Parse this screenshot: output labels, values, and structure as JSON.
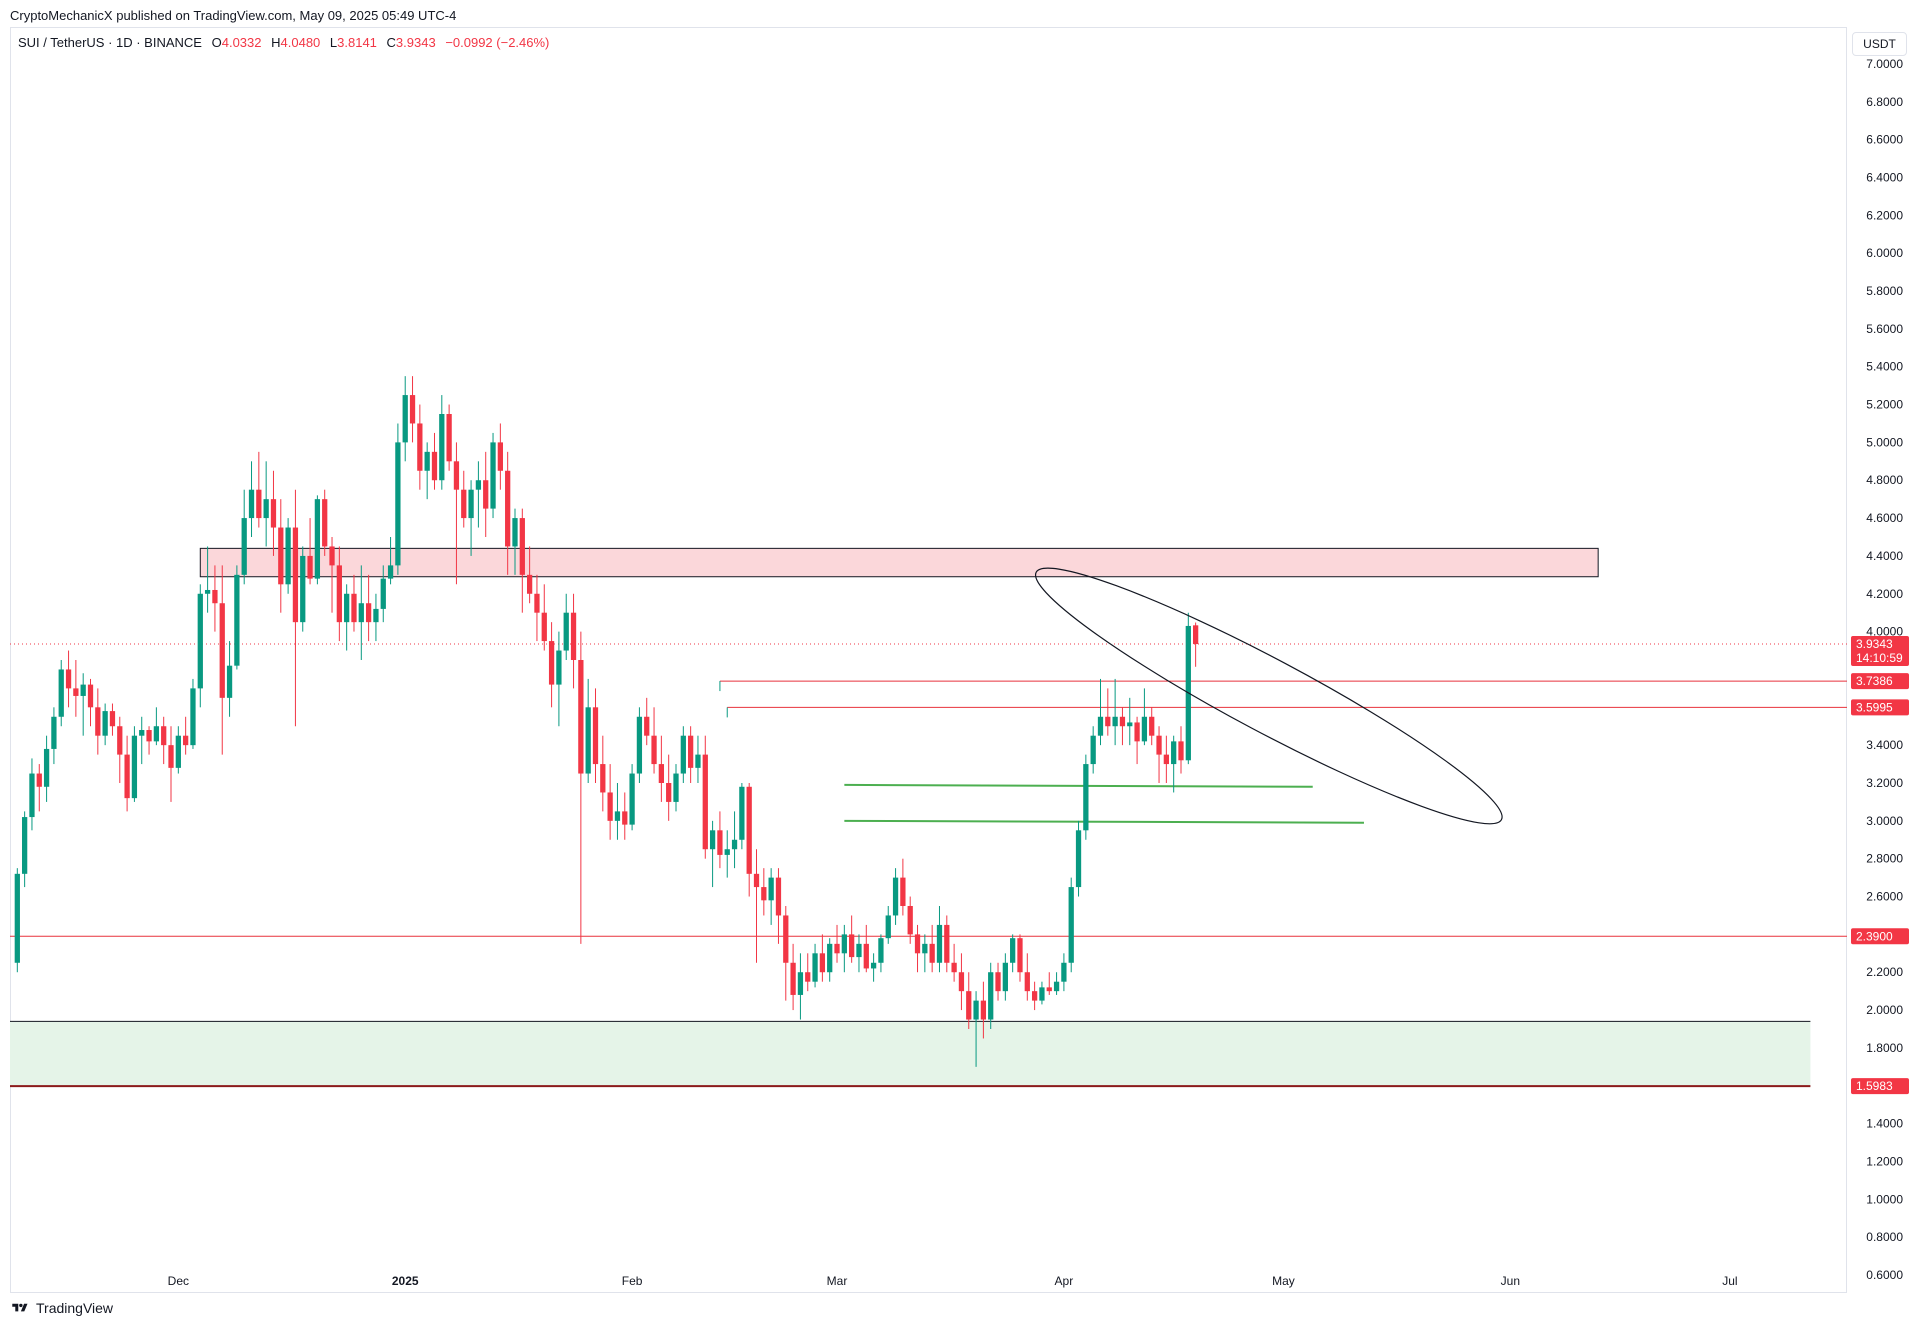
{
  "header": {
    "publisher_line": "CryptoMechanicX published on TradingView.com, May 09, 2025 05:49 UTC-4"
  },
  "legend": {
    "symbol": "SUI / TetherUS · 1D · BINANCE",
    "o_label": "O",
    "o_value": "4.0332",
    "h_label": "H",
    "h_value": "4.0480",
    "l_label": "L",
    "l_value": "3.8141",
    "c_label": "C",
    "c_value": "3.9343",
    "change": "−0.0992 (−2.46%)"
  },
  "currency_button": "USDT",
  "footer": {
    "brand": "TradingView"
  },
  "colors": {
    "up": "#089981",
    "down": "#f23645",
    "resistance_zone": "#fbd7da",
    "support_zone": "#e5f4e8",
    "level_line": "#e8323c",
    "green_line": "#4caf50"
  },
  "chart_data": {
    "type": "candlestick",
    "symbol": "SUI/USDT",
    "timeframe": "1D",
    "ylim": [
      0.6,
      7.1
    ],
    "y_ticks": [
      "7.0000",
      "6.8000",
      "6.6000",
      "6.4000",
      "6.2000",
      "6.0000",
      "5.8000",
      "5.6000",
      "5.4000",
      "5.2000",
      "5.0000",
      "4.8000",
      "4.6000",
      "4.4000",
      "4.2000",
      "4.0000",
      "3.4000",
      "3.2000",
      "3.0000",
      "2.8000",
      "2.6000",
      "2.2000",
      "2.0000",
      "1.8000",
      "1.4000",
      "1.2000",
      "1.0000",
      "0.8000",
      "0.6000"
    ],
    "x_ticks": [
      {
        "label": "Dec",
        "date": "2024-12-01"
      },
      {
        "label": "2025",
        "date": "2025-01-01"
      },
      {
        "label": "Feb",
        "date": "2025-02-01"
      },
      {
        "label": "Mar",
        "date": "2025-03-01"
      },
      {
        "label": "Apr",
        "date": "2025-04-01"
      },
      {
        "label": "May",
        "date": "2025-05-01"
      },
      {
        "label": "Jun",
        "date": "2025-06-01"
      },
      {
        "label": "Jul",
        "date": "2025-07-01"
      }
    ],
    "x_range": [
      "2024-11-08",
      "2025-07-17"
    ],
    "price_labels": [
      {
        "value": "3.9343",
        "price": 3.9343,
        "sub": "14:10:59"
      },
      {
        "value": "3.7386",
        "price": 3.7386
      },
      {
        "value": "3.5995",
        "price": 3.5995
      },
      {
        "value": "2.3900",
        "price": 2.39
      },
      {
        "value": "1.5983",
        "price": 1.5983
      }
    ],
    "zones": [
      {
        "name": "resistance",
        "from": 4.29,
        "to": 4.44,
        "start": "2024-12-04",
        "end": "2025-06-13"
      },
      {
        "name": "support",
        "from": 1.5983,
        "to": 1.94,
        "start": "2024-11-08",
        "end": "2025-07-12"
      }
    ],
    "levels": [
      {
        "price": 3.7386,
        "start": "2025-02-13"
      },
      {
        "price": 3.5995,
        "start": "2025-02-14"
      },
      {
        "price": 2.39,
        "start": "2024-11-08"
      }
    ],
    "green_lines": [
      {
        "start": "2025-03-02",
        "end": "2025-05-05",
        "p1": 3.19,
        "p2": 3.18
      },
      {
        "start": "2025-03-02",
        "end": "2025-05-12",
        "p1": 3.0,
        "p2": 2.99
      }
    ],
    "ellipse": {
      "center_date": "2025-04-29",
      "center_price": 3.66,
      "rx_days": 6,
      "ry_price": 0.35,
      "angle": 28
    },
    "start_date": "2024-11-09",
    "ohlc": [
      [
        2.25,
        2.75,
        2.2,
        2.72
      ],
      [
        2.72,
        3.05,
        2.65,
        3.02
      ],
      [
        3.02,
        3.33,
        2.95,
        3.25
      ],
      [
        3.25,
        3.3,
        3.05,
        3.18
      ],
      [
        3.18,
        3.45,
        3.1,
        3.38
      ],
      [
        3.38,
        3.6,
        3.3,
        3.55
      ],
      [
        3.55,
        3.85,
        3.5,
        3.8
      ],
      [
        3.8,
        3.9,
        3.6,
        3.7
      ],
      [
        3.7,
        3.85,
        3.55,
        3.66
      ],
      [
        3.66,
        3.78,
        3.45,
        3.72
      ],
      [
        3.72,
        3.75,
        3.5,
        3.6
      ],
      [
        3.6,
        3.7,
        3.35,
        3.45
      ],
      [
        3.45,
        3.62,
        3.4,
        3.58
      ],
      [
        3.58,
        3.62,
        3.45,
        3.5
      ],
      [
        3.5,
        3.55,
        3.2,
        3.35
      ],
      [
        3.35,
        3.45,
        3.05,
        3.12
      ],
      [
        3.12,
        3.5,
        3.1,
        3.45
      ],
      [
        3.45,
        3.55,
        3.3,
        3.48
      ],
      [
        3.48,
        3.5,
        3.35,
        3.42
      ],
      [
        3.42,
        3.6,
        3.4,
        3.5
      ],
      [
        3.5,
        3.55,
        3.3,
        3.4
      ],
      [
        3.4,
        3.5,
        3.1,
        3.28
      ],
      [
        3.28,
        3.5,
        3.25,
        3.45
      ],
      [
        3.45,
        3.55,
        3.35,
        3.4
      ],
      [
        3.4,
        3.75,
        3.38,
        3.7
      ],
      [
        3.7,
        4.25,
        3.6,
        4.2
      ],
      [
        4.2,
        4.45,
        4.1,
        4.22
      ],
      [
        4.22,
        4.35,
        4.0,
        4.15
      ],
      [
        4.15,
        4.35,
        3.35,
        3.65
      ],
      [
        3.65,
        3.95,
        3.55,
        3.82
      ],
      [
        3.82,
        4.35,
        3.8,
        4.3
      ],
      [
        4.3,
        4.75,
        4.25,
        4.6
      ],
      [
        4.6,
        4.9,
        4.5,
        4.75
      ],
      [
        4.75,
        4.95,
        4.55,
        4.6
      ],
      [
        4.6,
        4.9,
        4.45,
        4.7
      ],
      [
        4.7,
        4.85,
        4.4,
        4.55
      ],
      [
        4.55,
        4.7,
        4.1,
        4.25
      ],
      [
        4.25,
        4.6,
        4.2,
        4.55
      ],
      [
        4.55,
        4.75,
        3.5,
        4.05
      ],
      [
        4.05,
        4.45,
        4.0,
        4.4
      ],
      [
        4.4,
        4.6,
        4.25,
        4.28
      ],
      [
        4.28,
        4.72,
        4.25,
        4.7
      ],
      [
        4.7,
        4.75,
        4.4,
        4.45
      ],
      [
        4.45,
        4.5,
        4.1,
        4.35
      ],
      [
        4.35,
        4.45,
        3.95,
        4.05
      ],
      [
        4.05,
        4.25,
        3.9,
        4.2
      ],
      [
        4.2,
        4.3,
        4.0,
        4.05
      ],
      [
        4.05,
        4.35,
        3.85,
        4.15
      ],
      [
        4.15,
        4.3,
        3.95,
        4.05
      ],
      [
        4.05,
        4.2,
        3.95,
        4.12
      ],
      [
        4.12,
        4.35,
        4.05,
        4.28
      ],
      [
        4.28,
        4.5,
        4.25,
        4.35
      ],
      [
        4.35,
        5.1,
        4.3,
        5.0
      ],
      [
        5.0,
        5.35,
        4.9,
        5.25
      ],
      [
        5.25,
        5.35,
        5.0,
        5.1
      ],
      [
        5.1,
        5.2,
        4.75,
        4.85
      ],
      [
        4.85,
        5.0,
        4.7,
        4.95
      ],
      [
        4.95,
        5.05,
        4.75,
        4.8
      ],
      [
        4.8,
        5.25,
        4.75,
        5.15
      ],
      [
        5.15,
        5.2,
        4.85,
        4.9
      ],
      [
        4.9,
        5.0,
        4.25,
        4.75
      ],
      [
        4.75,
        4.85,
        4.55,
        4.6
      ],
      [
        4.6,
        4.8,
        4.4,
        4.75
      ],
      [
        4.75,
        4.9,
        4.55,
        4.8
      ],
      [
        4.8,
        4.95,
        4.5,
        4.65
      ],
      [
        4.65,
        5.05,
        4.6,
        5.0
      ],
      [
        5.0,
        5.1,
        4.75,
        4.85
      ],
      [
        4.85,
        4.95,
        4.3,
        4.45
      ],
      [
        4.45,
        4.65,
        4.3,
        4.6
      ],
      [
        4.6,
        4.65,
        4.1,
        4.3
      ],
      [
        4.3,
        4.45,
        4.15,
        4.2
      ],
      [
        4.2,
        4.3,
        3.95,
        4.1
      ],
      [
        4.1,
        4.25,
        3.9,
        3.95
      ],
      [
        3.95,
        4.05,
        3.6,
        3.72
      ],
      [
        3.72,
        4.0,
        3.5,
        3.9
      ],
      [
        3.9,
        4.2,
        3.85,
        4.1
      ],
      [
        4.1,
        4.2,
        3.7,
        3.85
      ],
      [
        3.85,
        4.0,
        2.35,
        3.25
      ],
      [
        3.25,
        3.75,
        3.2,
        3.6
      ],
      [
        3.6,
        3.7,
        3.2,
        3.3
      ],
      [
        3.3,
        3.45,
        3.05,
        3.15
      ],
      [
        3.15,
        3.3,
        2.9,
        3.0
      ],
      [
        3.0,
        3.2,
        2.9,
        3.05
      ],
      [
        3.05,
        3.15,
        2.9,
        2.98
      ],
      [
        2.98,
        3.3,
        2.95,
        3.25
      ],
      [
        3.25,
        3.6,
        3.2,
        3.55
      ],
      [
        3.55,
        3.65,
        3.4,
        3.45
      ],
      [
        3.45,
        3.6,
        3.25,
        3.3
      ],
      [
        3.3,
        3.45,
        3.1,
        3.2
      ],
      [
        3.2,
        3.35,
        3.0,
        3.1
      ],
      [
        3.1,
        3.3,
        3.05,
        3.25
      ],
      [
        3.25,
        3.5,
        3.2,
        3.45
      ],
      [
        3.45,
        3.5,
        3.2,
        3.28
      ],
      [
        3.28,
        3.45,
        3.2,
        3.35
      ],
      [
        3.35,
        3.45,
        2.8,
        2.85
      ],
      [
        2.85,
        3.0,
        2.65,
        2.95
      ],
      [
        2.95,
        3.05,
        2.75,
        2.82
      ],
      [
        2.82,
        2.95,
        2.7,
        2.85
      ],
      [
        2.85,
        3.05,
        2.75,
        2.9
      ],
      [
        2.9,
        3.2,
        2.85,
        3.18
      ],
      [
        3.18,
        3.2,
        2.6,
        2.72
      ],
      [
        2.72,
        2.85,
        2.25,
        2.65
      ],
      [
        2.65,
        2.75,
        2.5,
        2.58
      ],
      [
        2.58,
        2.75,
        2.45,
        2.7
      ],
      [
        2.7,
        2.75,
        2.35,
        2.5
      ],
      [
        2.5,
        2.55,
        2.05,
        2.25
      ],
      [
        2.25,
        2.35,
        2.0,
        2.08
      ],
      [
        2.08,
        2.3,
        1.95,
        2.2
      ],
      [
        2.2,
        2.3,
        2.1,
        2.15
      ],
      [
        2.15,
        2.35,
        2.12,
        2.3
      ],
      [
        2.3,
        2.4,
        2.15,
        2.2
      ],
      [
        2.2,
        2.38,
        2.15,
        2.35
      ],
      [
        2.35,
        2.45,
        2.25,
        2.3
      ],
      [
        2.3,
        2.45,
        2.2,
        2.4
      ],
      [
        2.4,
        2.5,
        2.25,
        2.28
      ],
      [
        2.28,
        2.4,
        2.2,
        2.35
      ],
      [
        2.35,
        2.45,
        2.2,
        2.22
      ],
      [
        2.22,
        2.3,
        2.15,
        2.25
      ],
      [
        2.25,
        2.4,
        2.2,
        2.38
      ],
      [
        2.38,
        2.55,
        2.35,
        2.5
      ],
      [
        2.5,
        2.75,
        2.45,
        2.7
      ],
      [
        2.7,
        2.8,
        2.5,
        2.55
      ],
      [
        2.55,
        2.6,
        2.35,
        2.4
      ],
      [
        2.4,
        2.45,
        2.2,
        2.3
      ],
      [
        2.3,
        2.4,
        2.2,
        2.35
      ],
      [
        2.35,
        2.45,
        2.2,
        2.25
      ],
      [
        2.25,
        2.55,
        2.2,
        2.45
      ],
      [
        2.45,
        2.5,
        2.2,
        2.25
      ],
      [
        2.25,
        2.35,
        2.15,
        2.2
      ],
      [
        2.2,
        2.3,
        2.0,
        2.1
      ],
      [
        2.1,
        2.2,
        1.9,
        1.95
      ],
      [
        1.95,
        2.1,
        1.7,
        2.05
      ],
      [
        2.05,
        2.15,
        1.85,
        1.95
      ],
      [
        1.95,
        2.25,
        1.9,
        2.2
      ],
      [
        2.2,
        2.25,
        2.05,
        2.1
      ],
      [
        2.1,
        2.3,
        2.05,
        2.25
      ],
      [
        2.25,
        2.4,
        2.2,
        2.38
      ],
      [
        2.38,
        2.4,
        2.15,
        2.2
      ],
      [
        2.2,
        2.3,
        2.05,
        2.1
      ],
      [
        2.1,
        2.15,
        2.0,
        2.05
      ],
      [
        2.05,
        2.15,
        2.03,
        2.12
      ],
      [
        2.12,
        2.2,
        2.08,
        2.1
      ],
      [
        2.1,
        2.2,
        2.08,
        2.15
      ],
      [
        2.15,
        2.3,
        2.1,
        2.25
      ],
      [
        2.25,
        2.7,
        2.2,
        2.65
      ],
      [
        2.65,
        3.0,
        2.6,
        2.95
      ],
      [
        2.95,
        3.35,
        2.9,
        3.3
      ],
      [
        3.3,
        3.5,
        3.25,
        3.45
      ],
      [
        3.45,
        3.75,
        3.4,
        3.55
      ],
      [
        3.55,
        3.7,
        3.45,
        3.5
      ],
      [
        3.5,
        3.75,
        3.4,
        3.55
      ],
      [
        3.55,
        3.6,
        3.4,
        3.5
      ],
      [
        3.5,
        3.65,
        3.4,
        3.52
      ],
      [
        3.52,
        3.55,
        3.3,
        3.42
      ],
      [
        3.42,
        3.7,
        3.4,
        3.55
      ],
      [
        3.55,
        3.6,
        3.4,
        3.45
      ],
      [
        3.45,
        3.5,
        3.2,
        3.35
      ],
      [
        3.35,
        3.45,
        3.2,
        3.3
      ],
      [
        3.3,
        3.45,
        3.15,
        3.42
      ],
      [
        3.42,
        3.5,
        3.25,
        3.32
      ],
      [
        3.32,
        4.1,
        3.3,
        4.03
      ],
      [
        4.0332,
        4.048,
        3.8141,
        3.9343
      ]
    ]
  }
}
